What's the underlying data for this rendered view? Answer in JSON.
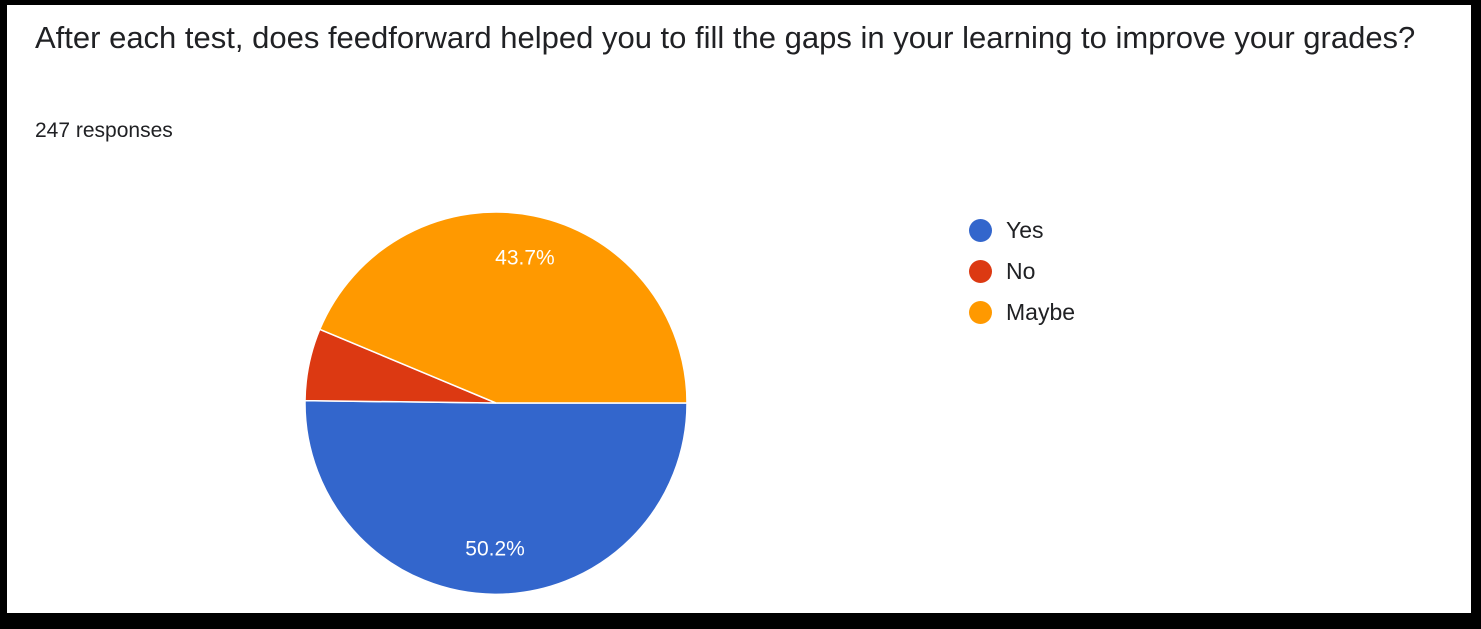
{
  "question": "After each test, does feedforward helped you to fill the gaps in your learning to improve your grades?",
  "responses_text": "247 responses",
  "chart_data": {
    "type": "pie",
    "title": "After each test, does feedforward helped you to fill the gaps in your learning to improve your grades?",
    "subtitle": "247 responses",
    "labels": [
      "Yes",
      "No",
      "Maybe"
    ],
    "values": [
      50.2,
      6.1,
      43.7
    ],
    "value_labels": [
      "50.2%",
      "",
      "43.7%"
    ],
    "colors": [
      "#3366cc",
      "#dc3912",
      "#ff9900"
    ],
    "legend_position": "right"
  },
  "legend": [
    {
      "label": "Yes",
      "color": "#3366cc"
    },
    {
      "label": "No",
      "color": "#dc3912"
    },
    {
      "label": "Maybe",
      "color": "#ff9900"
    }
  ]
}
